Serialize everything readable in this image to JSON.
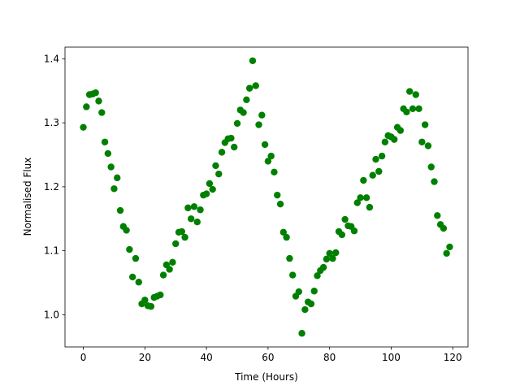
{
  "chart_data": {
    "type": "scatter",
    "xlabel": "Time (Hours)",
    "ylabel": "Normalised Flux",
    "color": "#008000",
    "x": [
      0,
      1,
      2,
      3,
      4,
      5,
      6,
      7,
      8,
      9,
      10,
      11,
      12,
      13,
      14,
      15,
      16,
      17,
      18,
      19,
      20,
      21,
      22,
      23,
      24,
      25,
      26,
      27,
      28,
      29,
      30,
      31,
      32,
      33,
      34,
      35,
      36,
      37,
      38,
      39,
      40,
      41,
      42,
      43,
      44,
      45,
      46,
      47,
      48,
      49,
      50,
      51,
      52,
      53,
      54,
      55,
      56,
      57,
      58,
      59,
      60,
      61,
      62,
      63,
      64,
      65,
      66,
      67,
      68,
      69,
      70,
      71,
      72,
      73,
      74,
      75,
      76,
      77,
      78,
      79,
      80,
      81,
      82,
      83,
      84,
      85,
      86,
      87,
      88,
      89,
      90,
      91,
      92,
      93,
      94,
      95,
      96,
      97,
      98,
      99,
      100,
      101,
      102,
      103,
      104,
      105,
      106,
      107,
      108,
      109,
      110,
      111,
      112,
      113,
      114,
      115,
      116,
      117,
      118,
      119
    ],
    "values": [
      1.293,
      1.325,
      1.344,
      1.345,
      1.347,
      1.334,
      1.316,
      1.27,
      1.252,
      1.231,
      1.197,
      1.214,
      1.163,
      1.138,
      1.132,
      1.102,
      1.059,
      1.088,
      1.051,
      1.017,
      1.023,
      1.014,
      1.013,
      1.027,
      1.029,
      1.031,
      1.062,
      1.078,
      1.071,
      1.082,
      1.111,
      1.129,
      1.13,
      1.121,
      1.167,
      1.15,
      1.169,
      1.145,
      1.164,
      1.187,
      1.189,
      1.205,
      1.196,
      1.233,
      1.22,
      1.254,
      1.269,
      1.275,
      1.276,
      1.262,
      1.299,
      1.32,
      1.316,
      1.336,
      1.354,
      1.397,
      1.358,
      1.297,
      1.312,
      1.266,
      1.24,
      1.248,
      1.223,
      1.187,
      1.173,
      1.129,
      1.121,
      1.088,
      1.062,
      1.029,
      1.036,
      0.971,
      1.008,
      1.02,
      1.017,
      1.037,
      1.061,
      1.069,
      1.074,
      1.087,
      1.096,
      1.088,
      1.097,
      1.13,
      1.125,
      1.149,
      1.139,
      1.138,
      1.131,
      1.175,
      1.183,
      1.21,
      1.183,
      1.168,
      1.218,
      1.243,
      1.224,
      1.248,
      1.27,
      1.28,
      1.278,
      1.274,
      1.293,
      1.288,
      1.322,
      1.317,
      1.349,
      1.322,
      1.344,
      1.322,
      1.27,
      1.297,
      1.264,
      1.231,
      1.208,
      1.155,
      1.141,
      1.135,
      1.096,
      1.106
    ],
    "xlim": [
      -5.95,
      124.95
    ],
    "xticks": [
      0,
      20,
      40,
      60,
      80,
      100,
      120
    ],
    "ylim": [
      0.9497,
      1.4183
    ],
    "yticks": [
      {
        "value": 1,
        "label": "1.0"
      },
      1.1,
      1.2,
      1.3,
      1.4
    ],
    "grid": false
  }
}
